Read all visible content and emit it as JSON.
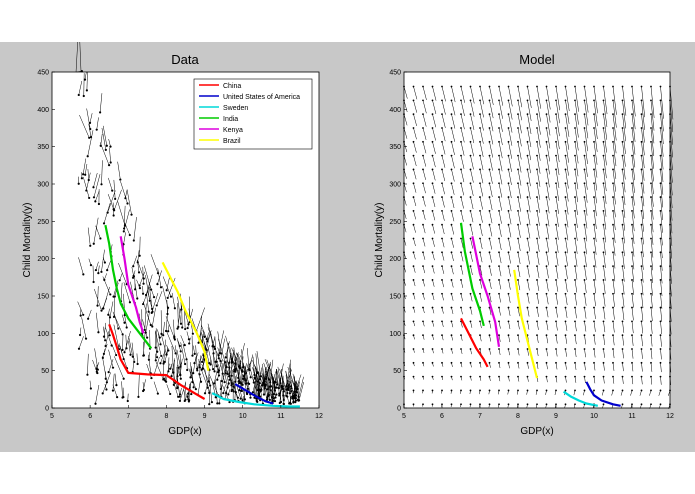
{
  "chart_data": [
    {
      "type": "quiver",
      "title": "Data",
      "xlabel": "GDP(x)",
      "ylabel": "Child Mortality(y)",
      "xlim": [
        5,
        12
      ],
      "ylim": [
        0,
        450
      ],
      "xticks": [
        5,
        6,
        7,
        8,
        9,
        10,
        11,
        12
      ],
      "yticks": [
        0,
        50,
        100,
        150,
        200,
        250,
        300,
        350,
        400,
        450
      ],
      "legend_position": "top-right",
      "series": [
        {
          "name": "China",
          "color": "#ff0000",
          "x": [
            6.5,
            6.6,
            6.7,
            6.8,
            7.0,
            7.5,
            8.0,
            8.4,
            8.8,
            9.0
          ],
          "y": [
            112,
            98,
            82,
            65,
            47,
            45,
            44,
            30,
            18,
            12
          ]
        },
        {
          "name": "United States of America",
          "color": "#0000cc",
          "x": [
            9.8,
            10.0,
            10.2,
            10.4,
            10.6,
            10.8
          ],
          "y": [
            32,
            26,
            20,
            14,
            9,
            6
          ]
        },
        {
          "name": "Sweden",
          "color": "#00d8d8",
          "x": [
            9.2,
            9.5,
            9.9,
            10.3,
            10.8,
            11.2,
            11.5
          ],
          "y": [
            20,
            12,
            8,
            5,
            3,
            2,
            2
          ]
        },
        {
          "name": "India",
          "color": "#00cc00",
          "x": [
            6.4,
            6.5,
            6.6,
            6.7,
            6.8,
            7.0,
            7.3,
            7.6
          ],
          "y": [
            245,
            220,
            185,
            160,
            140,
            120,
            100,
            80
          ]
        },
        {
          "name": "Kenya",
          "color": "#dd00dd",
          "x": [
            6.8,
            6.9,
            7.0,
            7.2,
            7.3,
            7.4
          ],
          "y": [
            230,
            200,
            165,
            135,
            115,
            100
          ]
        },
        {
          "name": "Brazil",
          "color": "#ffff00",
          "x": [
            7.9,
            8.1,
            8.3,
            8.5,
            8.8,
            9.0,
            9.1
          ],
          "y": [
            195,
            175,
            155,
            130,
            100,
            75,
            50
          ]
        }
      ]
    },
    {
      "type": "quiver",
      "title": "Model",
      "xlabel": "GDP(x)",
      "ylabel": "Child Mortality(y)",
      "xlim": [
        5,
        12
      ],
      "ylim": [
        0,
        450
      ],
      "xticks": [
        5,
        6,
        7,
        8,
        9,
        10,
        11,
        12
      ],
      "yticks": [
        0,
        50,
        100,
        150,
        200,
        250,
        300,
        350,
        400,
        450
      ],
      "series": [
        {
          "color": "#dd00dd",
          "x": [
            6.8,
            6.9,
            7.0,
            7.2,
            7.4,
            7.5
          ],
          "y": [
            230,
            205,
            180,
            150,
            115,
            82
          ]
        },
        {
          "color": "#00cc00",
          "x": [
            6.5,
            6.6,
            6.7,
            6.8,
            7.0,
            7.1
          ],
          "y": [
            248,
            210,
            185,
            160,
            130,
            110
          ]
        },
        {
          "color": "#ff0000",
          "x": [
            6.5,
            6.7,
            6.9,
            7.1,
            7.2
          ],
          "y": [
            120,
            100,
            80,
            65,
            55
          ]
        },
        {
          "color": "#ffff00",
          "x": [
            7.9,
            8.0,
            8.1,
            8.3,
            8.5
          ],
          "y": [
            185,
            150,
            120,
            80,
            40
          ]
        },
        {
          "color": "#0000cc",
          "x": [
            9.8,
            9.9,
            10.0,
            10.2,
            10.5,
            10.7
          ],
          "y": [
            35,
            25,
            17,
            10,
            5,
            3
          ]
        },
        {
          "color": "#00d8d8",
          "x": [
            9.2,
            9.4,
            9.6,
            9.8,
            10.1
          ],
          "y": [
            22,
            15,
            10,
            6,
            3
          ]
        }
      ]
    }
  ]
}
